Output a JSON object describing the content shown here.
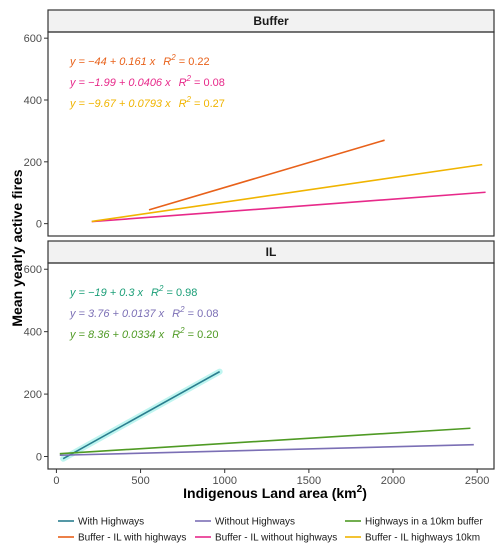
{
  "chart_data": {
    "type": "line",
    "xlabel": "Indigenous Land area (km",
    "xlabel_sup": "2",
    "xlabel_close": ")",
    "ylabel": "Mean yearly active fires",
    "xlim": [
      -50,
      2600
    ],
    "ylim": [
      -40,
      620
    ],
    "x_ticks": [
      0,
      500,
      1000,
      1500,
      2000,
      2500
    ],
    "y_ticks": [
      0,
      200,
      400,
      600
    ],
    "grid": false,
    "legend_position": "bottom",
    "legend": [
      {
        "label": "With Highways",
        "color": "#2a7f8f"
      },
      {
        "label": "Without Highways",
        "color": "#7b6fb5"
      },
      {
        "label": "Highways in a 10km buffer",
        "color": "#4f9a24"
      },
      {
        "label": "Buffer - IL with highways",
        "color": "#e8611a"
      },
      {
        "label": "Buffer - IL without highways",
        "color": "#e7298a"
      },
      {
        "label": "Buffer - IL highways 10km",
        "color": "#f0b400"
      }
    ],
    "panels": [
      {
        "title": "Buffer",
        "equations": [
          {
            "lhs": "y = −44 + 0.161",
            "var": "x",
            "r2": "R",
            "sup": "2",
            "rhs": " = 0.22",
            "color": "#e8611a"
          },
          {
            "lhs": "y = −1.99 + 0.0406",
            "var": "x",
            "r2": "R",
            "sup": "2",
            "rhs": " = 0.08",
            "color": "#e7298a"
          },
          {
            "lhs": "y = −9.67 + 0.0793",
            "var": "x",
            "r2": "R",
            "sup": "2",
            "rhs": " = 0.27",
            "color": "#f0b400"
          }
        ],
        "series": [
          {
            "name": "Buffer - IL with highways",
            "color": "#e8611a",
            "intercept": -44,
            "slope": 0.161,
            "x": [
              550,
              1950
            ]
          },
          {
            "name": "Buffer - IL without highways",
            "color": "#e7298a",
            "intercept": -1.99,
            "slope": 0.0406,
            "x": [
              210,
              2550
            ]
          },
          {
            "name": "Buffer - IL highways 10km",
            "color": "#f0b400",
            "intercept": -9.67,
            "slope": 0.0793,
            "x": [
              210,
              2530
            ]
          }
        ]
      },
      {
        "title": "IL",
        "equations": [
          {
            "lhs": "y = −19 + 0.3",
            "var": "x",
            "r2": "R",
            "sup": "2",
            "rhs": " = 0.98",
            "color": "#1a9e77"
          },
          {
            "lhs": "y = 3.76 + 0.0137",
            "var": "x",
            "r2": "R",
            "sup": "2",
            "rhs": " = 0.08",
            "color": "#7b6fb5"
          },
          {
            "lhs": "y = 8.36 + 0.0334",
            "var": "x",
            "r2": "R",
            "sup": "2",
            "rhs": " = 0.20",
            "color": "#4f9a24"
          }
        ],
        "series": [
          {
            "name": "With Highways",
            "color": "#2a7f8f",
            "intercept": -19,
            "slope": 0.3,
            "x": [
              40,
              970
            ],
            "halo": "#bff5f0"
          },
          {
            "name": "Without Highways",
            "color": "#7b6fb5",
            "intercept": 3.76,
            "slope": 0.0137,
            "x": [
              20,
              2480
            ]
          },
          {
            "name": "Highways in a 10km buffer",
            "color": "#4f9a24",
            "intercept": 8.36,
            "slope": 0.0334,
            "x": [
              20,
              2460
            ]
          }
        ]
      }
    ]
  }
}
